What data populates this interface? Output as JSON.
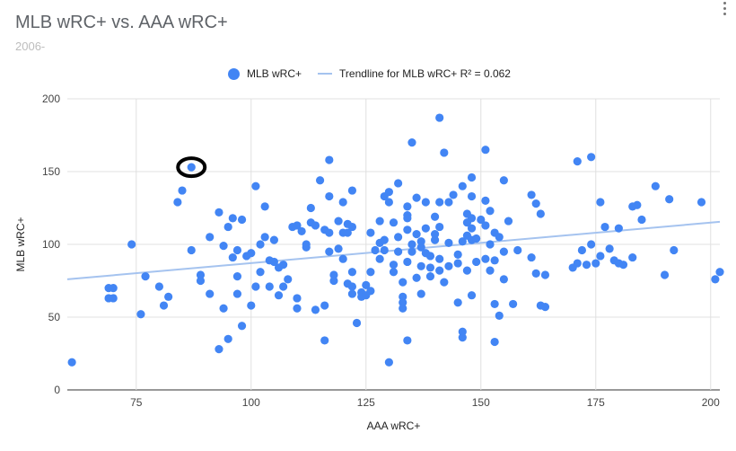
{
  "chart_data": {
    "type": "scatter",
    "title": "MLB wRC+ vs. AAA wRC+",
    "subtitle": "2006-",
    "xlabel": "AAA wRC+",
    "ylabel": "MLB wRC+",
    "xlim": [
      60,
      202
    ],
    "ylim": [
      0,
      200
    ],
    "xticks": [
      "75",
      "100",
      "125",
      "150",
      "175",
      "200"
    ],
    "yticks": [
      "0",
      "50",
      "100",
      "150",
      "200"
    ],
    "legend": [
      "MLB wRC+",
      "Trendline for MLB wRC+ R² = 0.062"
    ],
    "legend_position": "top",
    "grid": true,
    "point_color": "#4285f4",
    "trend_color": "#a5c3ef",
    "highlight_color": "#000000",
    "trendline": {
      "x": [
        60,
        202
      ],
      "y": [
        76,
        115.5
      ]
    },
    "highlight": {
      "x": 87,
      "y": 153
    },
    "series": [
      {
        "name": "MLB wRC+",
        "points": [
          [
            61,
            19
          ],
          [
            69,
            70
          ],
          [
            70,
            70
          ],
          [
            69,
            63
          ],
          [
            70,
            63
          ],
          [
            74,
            100
          ],
          [
            76,
            52
          ],
          [
            77,
            78
          ],
          [
            80,
            71
          ],
          [
            81,
            58
          ],
          [
            82,
            64
          ],
          [
            84,
            129
          ],
          [
            85,
            137
          ],
          [
            87,
            153
          ],
          [
            87,
            96
          ],
          [
            89,
            79
          ],
          [
            89,
            75
          ],
          [
            91,
            105
          ],
          [
            91,
            66
          ],
          [
            93,
            122
          ],
          [
            93,
            28
          ],
          [
            94,
            56
          ],
          [
            94,
            99
          ],
          [
            95,
            35
          ],
          [
            95,
            112
          ],
          [
            96,
            118
          ],
          [
            96,
            91
          ],
          [
            97,
            78
          ],
          [
            97,
            96
          ],
          [
            97,
            66
          ],
          [
            98,
            44
          ],
          [
            98,
            117
          ],
          [
            99,
            92
          ],
          [
            100,
            94
          ],
          [
            100,
            58
          ],
          [
            101,
            71
          ],
          [
            101,
            140
          ],
          [
            102,
            100
          ],
          [
            102,
            81
          ],
          [
            103,
            105
          ],
          [
            103,
            126
          ],
          [
            104,
            71
          ],
          [
            104,
            89
          ],
          [
            105,
            103
          ],
          [
            105,
            88
          ],
          [
            106,
            65
          ],
          [
            106,
            84
          ],
          [
            107,
            86
          ],
          [
            107,
            71
          ],
          [
            108,
            76
          ],
          [
            109,
            112
          ],
          [
            110,
            113
          ],
          [
            110,
            63
          ],
          [
            110,
            56
          ],
          [
            111,
            109
          ],
          [
            112,
            100
          ],
          [
            112,
            98
          ],
          [
            113,
            125
          ],
          [
            113,
            115
          ],
          [
            114,
            55
          ],
          [
            114,
            113
          ],
          [
            115,
            144
          ],
          [
            116,
            58
          ],
          [
            116,
            110
          ],
          [
            116,
            34
          ],
          [
            117,
            95
          ],
          [
            117,
            108
          ],
          [
            117,
            133
          ],
          [
            117,
            158
          ],
          [
            118,
            79
          ],
          [
            118,
            75
          ],
          [
            119,
            116
          ],
          [
            119,
            97
          ],
          [
            120,
            108
          ],
          [
            120,
            90
          ],
          [
            120,
            129
          ],
          [
            121,
            73
          ],
          [
            121,
            114
          ],
          [
            121,
            108
          ],
          [
            122,
            112
          ],
          [
            122,
            137
          ],
          [
            122,
            71
          ],
          [
            122,
            66
          ],
          [
            122,
            81
          ],
          [
            123,
            46
          ],
          [
            124,
            67
          ],
          [
            124,
            64
          ],
          [
            125,
            72
          ],
          [
            125,
            65
          ],
          [
            126,
            108
          ],
          [
            126,
            81
          ],
          [
            126,
            68
          ],
          [
            127,
            96
          ],
          [
            128,
            101
          ],
          [
            128,
            90
          ],
          [
            128,
            116
          ],
          [
            129,
            103
          ],
          [
            129,
            96
          ],
          [
            129,
            133
          ],
          [
            130,
            19
          ],
          [
            130,
            136
          ],
          [
            130,
            129
          ],
          [
            131,
            86
          ],
          [
            131,
            115
          ],
          [
            131,
            81
          ],
          [
            132,
            142
          ],
          [
            132,
            105
          ],
          [
            132,
            95
          ],
          [
            133,
            60
          ],
          [
            133,
            56
          ],
          [
            133,
            74
          ],
          [
            133,
            64
          ],
          [
            134,
            88
          ],
          [
            134,
            110
          ],
          [
            134,
            120
          ],
          [
            134,
            126
          ],
          [
            134,
            118
          ],
          [
            134,
            34
          ],
          [
            135,
            170
          ],
          [
            135,
            100
          ],
          [
            135,
            95
          ],
          [
            136,
            132
          ],
          [
            136,
            77
          ],
          [
            136,
            107
          ],
          [
            137,
            85
          ],
          [
            137,
            102
          ],
          [
            137,
            98
          ],
          [
            137,
            66
          ],
          [
            138,
            129
          ],
          [
            138,
            111
          ],
          [
            138,
            94
          ],
          [
            139,
            84
          ],
          [
            139,
            92
          ],
          [
            139,
            78
          ],
          [
            140,
            103
          ],
          [
            140,
            119
          ],
          [
            140,
            107
          ],
          [
            141,
            187
          ],
          [
            141,
            129
          ],
          [
            141,
            112
          ],
          [
            141,
            90
          ],
          [
            141,
            82
          ],
          [
            142,
            163
          ],
          [
            142,
            74
          ],
          [
            143,
            129
          ],
          [
            143,
            101
          ],
          [
            143,
            85
          ],
          [
            144,
            134
          ],
          [
            145,
            93
          ],
          [
            145,
            87
          ],
          [
            145,
            60
          ],
          [
            146,
            36
          ],
          [
            146,
            40
          ],
          [
            146,
            102
          ],
          [
            146,
            140
          ],
          [
            147,
            115
          ],
          [
            147,
            106
          ],
          [
            147,
            82
          ],
          [
            147,
            121
          ],
          [
            148,
            146
          ],
          [
            148,
            118
          ],
          [
            148,
            103
          ],
          [
            148,
            111
          ],
          [
            148,
            133
          ],
          [
            148,
            65
          ],
          [
            149,
            104
          ],
          [
            149,
            88
          ],
          [
            150,
            117
          ],
          [
            151,
            165
          ],
          [
            151,
            130
          ],
          [
            151,
            90
          ],
          [
            151,
            113
          ],
          [
            152,
            123
          ],
          [
            152,
            100
          ],
          [
            152,
            82
          ],
          [
            153,
            59
          ],
          [
            153,
            33
          ],
          [
            153,
            108
          ],
          [
            153,
            89
          ],
          [
            154,
            51
          ],
          [
            154,
            105
          ],
          [
            155,
            76
          ],
          [
            155,
            95
          ],
          [
            155,
            144
          ],
          [
            156,
            116
          ],
          [
            157,
            59
          ],
          [
            158,
            96
          ],
          [
            161,
            91
          ],
          [
            161,
            134
          ],
          [
            162,
            80
          ],
          [
            162,
            128
          ],
          [
            163,
            121
          ],
          [
            163,
            58
          ],
          [
            164,
            79
          ],
          [
            164,
            57
          ],
          [
            170,
            84
          ],
          [
            171,
            157
          ],
          [
            171,
            87
          ],
          [
            172,
            96
          ],
          [
            173,
            86
          ],
          [
            174,
            160
          ],
          [
            174,
            100
          ],
          [
            175,
            87
          ],
          [
            176,
            129
          ],
          [
            176,
            92
          ],
          [
            177,
            112
          ],
          [
            178,
            97
          ],
          [
            179,
            89
          ],
          [
            180,
            87
          ],
          [
            180,
            111
          ],
          [
            181,
            86
          ],
          [
            183,
            126
          ],
          [
            183,
            91
          ],
          [
            184,
            127
          ],
          [
            185,
            117
          ],
          [
            188,
            140
          ],
          [
            190,
            79
          ],
          [
            191,
            131
          ],
          [
            192,
            96
          ],
          [
            198,
            129
          ],
          [
            201,
            76
          ],
          [
            202,
            81
          ]
        ]
      }
    ]
  }
}
